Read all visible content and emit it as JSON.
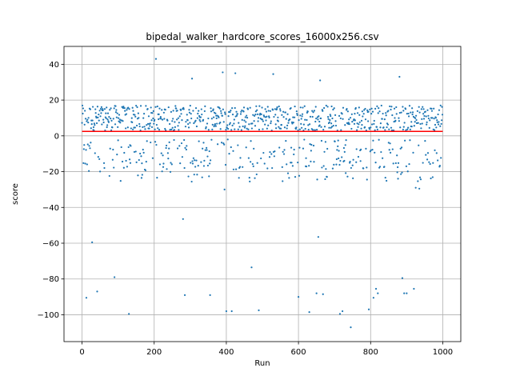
{
  "chart_data": {
    "type": "scatter",
    "title": "bipedal_walker_hardcore_scores_16000x256.csv",
    "xlabel": "Run",
    "ylabel": "score",
    "xlim": [
      -50,
      1050
    ],
    "ylim": [
      -115,
      50
    ],
    "xticks": [
      0,
      200,
      400,
      600,
      800,
      1000
    ],
    "yticks": [
      -100,
      -80,
      -60,
      -40,
      -20,
      0,
      20,
      40
    ],
    "grid": true,
    "points_total": 1000,
    "point_color": "#1f77b4",
    "mean_line": {
      "y": 2.5,
      "x_start": 0,
      "x_end": 1000,
      "color": "#ff0000"
    },
    "outliers": [
      {
        "x": 12,
        "y": -90.5
      },
      {
        "x": 28,
        "y": -59.5
      },
      {
        "x": 42,
        "y": -87
      },
      {
        "x": 90,
        "y": -79
      },
      {
        "x": 130,
        "y": -99.5
      },
      {
        "x": 205,
        "y": 43
      },
      {
        "x": 280,
        "y": -46.5
      },
      {
        "x": 285,
        "y": -89
      },
      {
        "x": 305,
        "y": 32
      },
      {
        "x": 355,
        "y": -89
      },
      {
        "x": 390,
        "y": 35.5
      },
      {
        "x": 395,
        "y": -30
      },
      {
        "x": 400,
        "y": -98
      },
      {
        "x": 415,
        "y": -98
      },
      {
        "x": 425,
        "y": 35
      },
      {
        "x": 470,
        "y": -73.5
      },
      {
        "x": 490,
        "y": -97.5
      },
      {
        "x": 530,
        "y": 34.5
      },
      {
        "x": 600,
        "y": -90
      },
      {
        "x": 630,
        "y": -98.5
      },
      {
        "x": 650,
        "y": -88
      },
      {
        "x": 655,
        "y": -56.5
      },
      {
        "x": 660,
        "y": 31
      },
      {
        "x": 668,
        "y": -88.5
      },
      {
        "x": 715,
        "y": -99.5
      },
      {
        "x": 722,
        "y": -98
      },
      {
        "x": 745,
        "y": -107
      },
      {
        "x": 795,
        "y": -97
      },
      {
        "x": 808,
        "y": -90.5
      },
      {
        "x": 815,
        "y": -85.5
      },
      {
        "x": 820,
        "y": -88
      },
      {
        "x": 880,
        "y": 33
      },
      {
        "x": 888,
        "y": -79.5
      },
      {
        "x": 893,
        "y": -88
      },
      {
        "x": 900,
        "y": -88
      },
      {
        "x": 920,
        "y": -85.5
      },
      {
        "x": 925,
        "y": -29
      },
      {
        "x": 935,
        "y": -29.5
      }
    ]
  }
}
